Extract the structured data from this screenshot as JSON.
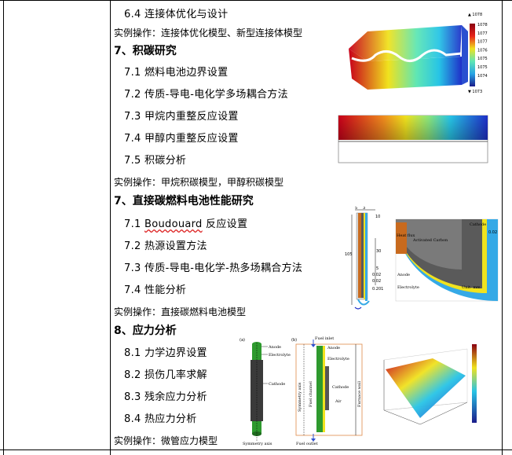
{
  "lines": {
    "l1": "6.4 连接体优化与设计",
    "l2": "实例操作：连接体优化模型、新型连接体模型",
    "h7a": "7、积碳研究",
    "s71a": "7.1 燃料电池边界设置",
    "s72a": "7.2 传质-导电-电化学多场耦合方法",
    "s73a": "7.3 甲烷内重整反应设置",
    "s74a": "7.4 甲醇内重整反应设置",
    "s75a": "7.5 积碳分析",
    "ex7a": "实例操作：甲烷积碳模型，甲醇积碳模型",
    "h7b": "7、直接碳燃料电池性能研究",
    "s71b_word": "Boudouard",
    "s71b_pre": "7.1 ",
    "s71b_post": " 反应设置",
    "s72b": "7.2 热源设置方法",
    "s73b": "7.3 传质-导电-电化学-热多场耦合方法",
    "s74b": "7.4 性能分析",
    "ex7b": "实例操作：直接碳燃料电池模型",
    "h8": "8、应力分析",
    "s81": "8.1 力学边界设置",
    "s82": "8.2 损伤几率求解",
    "s83": "8.3 残余应力分析",
    "s84": "8.4 热应力分析",
    "ex8": "实例操作：微管应力模型"
  },
  "fig1": {
    "ticks": [
      "▲ 1078",
      "1078",
      "1077",
      "1077",
      "1076",
      "1075",
      "1075",
      "1074",
      "▼ 1073"
    ]
  },
  "fig3": {
    "dims_top": [
      "5",
      "3",
      "10"
    ],
    "dims_left": [
      "105"
    ],
    "dims_mid": [
      "30",
      "5",
      "0.02",
      "0.02",
      "0.201"
    ],
    "labels": [
      "Heat flux",
      "Activated Carbon",
      "Cathode",
      "Anode",
      "Electrolyte",
      "Unit: mm",
      "0.02"
    ]
  },
  "fig4": {
    "panel_a_labels": [
      "Anode",
      "Electrolyte",
      "Cathode",
      "Symmetry axis"
    ],
    "panel_b_labels": [
      "Fuel inlet",
      "Anode",
      "Electrolyte",
      "Cathode",
      "Air",
      "Fuel outlet",
      "Symmetry axis",
      "Fuel channel",
      "Furnace wall"
    ],
    "panel_tags": [
      "(a)",
      "(b)"
    ]
  },
  "colors": {
    "jet_red": "#c8001a",
    "jet_yellow": "#f0e21e",
    "jet_cyan": "#27c4e6",
    "jet_blue": "#1f2fc9"
  }
}
